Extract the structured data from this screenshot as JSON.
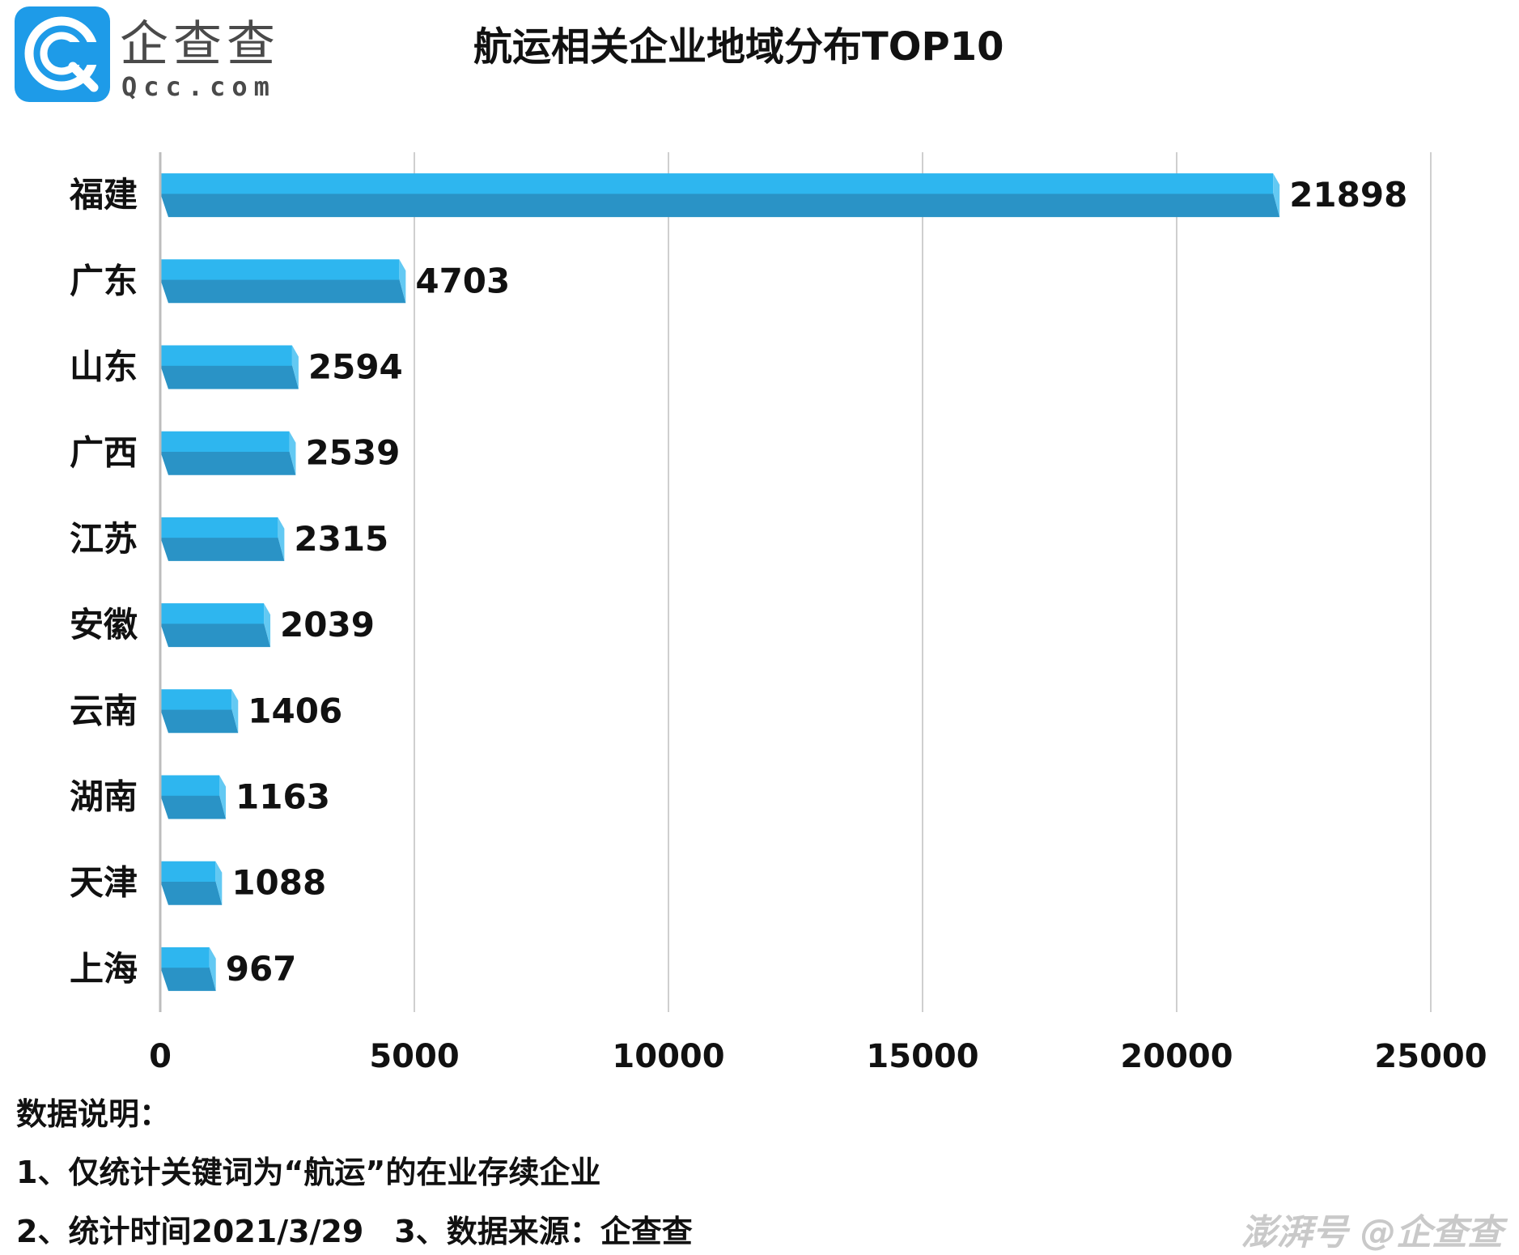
{
  "logo": {
    "brand_cn": "企查查",
    "brand_en": "Qcc.com",
    "icon": "qcc-logo-icon",
    "brand_color": "#1e9be8"
  },
  "chart_data": {
    "type": "bar",
    "orientation": "horizontal",
    "title": "航运相关企业地域分布TOP10",
    "categories": [
      "福建",
      "广东",
      "山东",
      "广西",
      "江苏",
      "安徽",
      "云南",
      "湖南",
      "天津",
      "上海"
    ],
    "values": [
      21898,
      4703,
      2594,
      2539,
      2315,
      2039,
      1406,
      1163,
      1088,
      967
    ],
    "data_labels": [
      "21898",
      "4703",
      "2594",
      "2539",
      "2315",
      "2039",
      "1406",
      "1163",
      "1088",
      "967"
    ],
    "xlim": [
      0,
      25000
    ],
    "xticks": [
      0,
      5000,
      10000,
      15000,
      20000,
      25000
    ],
    "xtick_labels": [
      "0",
      "5000",
      "10000",
      "15000",
      "20000",
      "25000"
    ],
    "grid": "vertical",
    "bar_color": "#2eb6ef",
    "bar_shade_color": "#2a93c6"
  },
  "notes": {
    "title": "数据说明：",
    "line1": "1、仅统计关键词为“航运”的在业存续企业",
    "line2": "2、统计时间2021/3/29　3、数据来源：企查查"
  },
  "watermark": "澎湃号 @企查查"
}
